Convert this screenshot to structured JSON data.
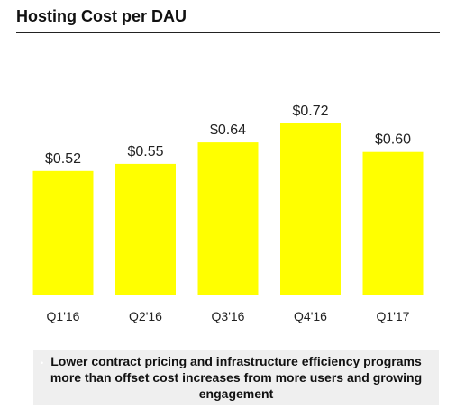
{
  "title": "Hosting Cost per DAU",
  "note": {
    "text": "Lower contract pricing and infrastructure efficiency programs more than offset cost increases from more users and growing engagement"
  },
  "colors": {
    "bar": "#ffff00",
    "text": "#222222"
  },
  "chart_data": {
    "type": "bar",
    "title": "Hosting Cost per DAU",
    "categories": [
      "Q1'16",
      "Q2'16",
      "Q3'16",
      "Q4'16",
      "Q1'17"
    ],
    "values": [
      0.52,
      0.55,
      0.64,
      0.72,
      0.6
    ],
    "labels": [
      "$0.52",
      "$0.55",
      "$0.64",
      "$0.72",
      "$0.60"
    ],
    "xlabel": "",
    "ylabel": "",
    "ylim": [
      0,
      1.0
    ],
    "grid": false,
    "legend": "none"
  }
}
